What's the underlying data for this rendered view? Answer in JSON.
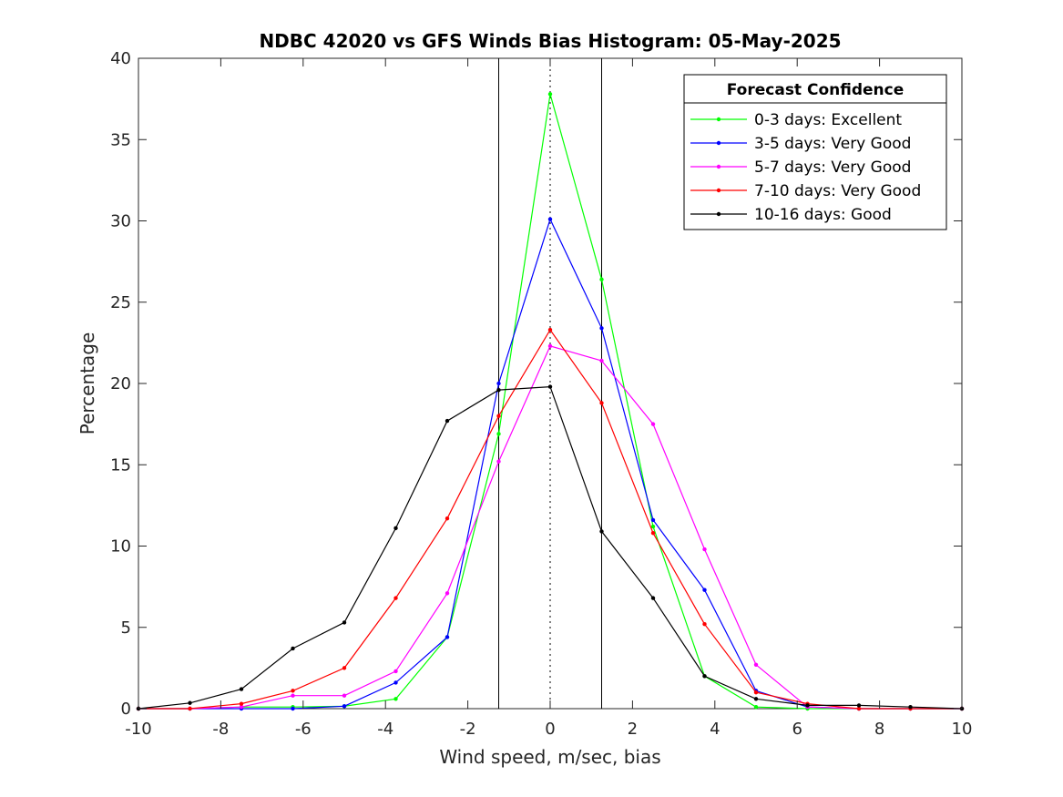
{
  "chart_data": {
    "type": "line",
    "title": "NDBC 42020 vs GFS Winds Bias Histogram: 05-May-2025",
    "xlabel": "Wind speed, m/sec, bias",
    "ylabel": "Percentage",
    "xlim": [
      -10,
      10
    ],
    "ylim": [
      0,
      40
    ],
    "xticks": [
      -10,
      -8,
      -6,
      -4,
      -2,
      0,
      2,
      4,
      6,
      8,
      10
    ],
    "yticks": [
      0,
      5,
      10,
      15,
      20,
      25,
      30,
      35,
      40
    ],
    "grid": false,
    "legend_title": "Forecast Confidence",
    "legend_position": "top-right",
    "reference_lines": {
      "solid_x": [
        -1.25,
        1.25
      ],
      "dotted_x": [
        0
      ]
    },
    "x": [
      -10,
      -8.75,
      -7.5,
      -6.25,
      -5,
      -3.75,
      -2.5,
      -1.25,
      0,
      1.25,
      2.5,
      3.75,
      5,
      6.25,
      7.5,
      8.75,
      10
    ],
    "series": [
      {
        "name": "0-3 days: Excellent",
        "color": "#00ff00",
        "values": [
          0,
          0,
          0.1,
          0.1,
          0.15,
          0.6,
          4.4,
          16.9,
          37.8,
          26.4,
          11.2,
          2.0,
          0.1,
          0.0,
          0,
          0,
          0
        ]
      },
      {
        "name": "3-5 days: Very Good",
        "color": "#0000ff",
        "values": [
          0,
          0,
          0.0,
          0.0,
          0.15,
          1.6,
          4.4,
          20.0,
          30.1,
          23.4,
          11.6,
          7.3,
          1.1,
          0.1,
          0,
          0,
          0
        ]
      },
      {
        "name": "5-7 days: Very Good",
        "color": "#ff00ff",
        "values": [
          0,
          0,
          0.1,
          0.8,
          0.8,
          2.3,
          7.1,
          15.2,
          22.3,
          21.4,
          17.5,
          9.8,
          2.7,
          0.1,
          0,
          0,
          0
        ]
      },
      {
        "name": "7-10 days: Very Good",
        "color": "#ff0000",
        "values": [
          0,
          0,
          0.3,
          1.1,
          2.5,
          6.8,
          11.7,
          18.0,
          23.3,
          18.8,
          10.8,
          5.2,
          1.0,
          0.3,
          0,
          0,
          0
        ]
      },
      {
        "name": "10-16 days: Good",
        "color": "#000000",
        "values": [
          0,
          0.35,
          1.2,
          3.7,
          5.3,
          11.1,
          17.7,
          19.6,
          19.8,
          10.9,
          6.8,
          2.0,
          0.6,
          0.2,
          0.2,
          0.1,
          0
        ]
      }
    ]
  }
}
